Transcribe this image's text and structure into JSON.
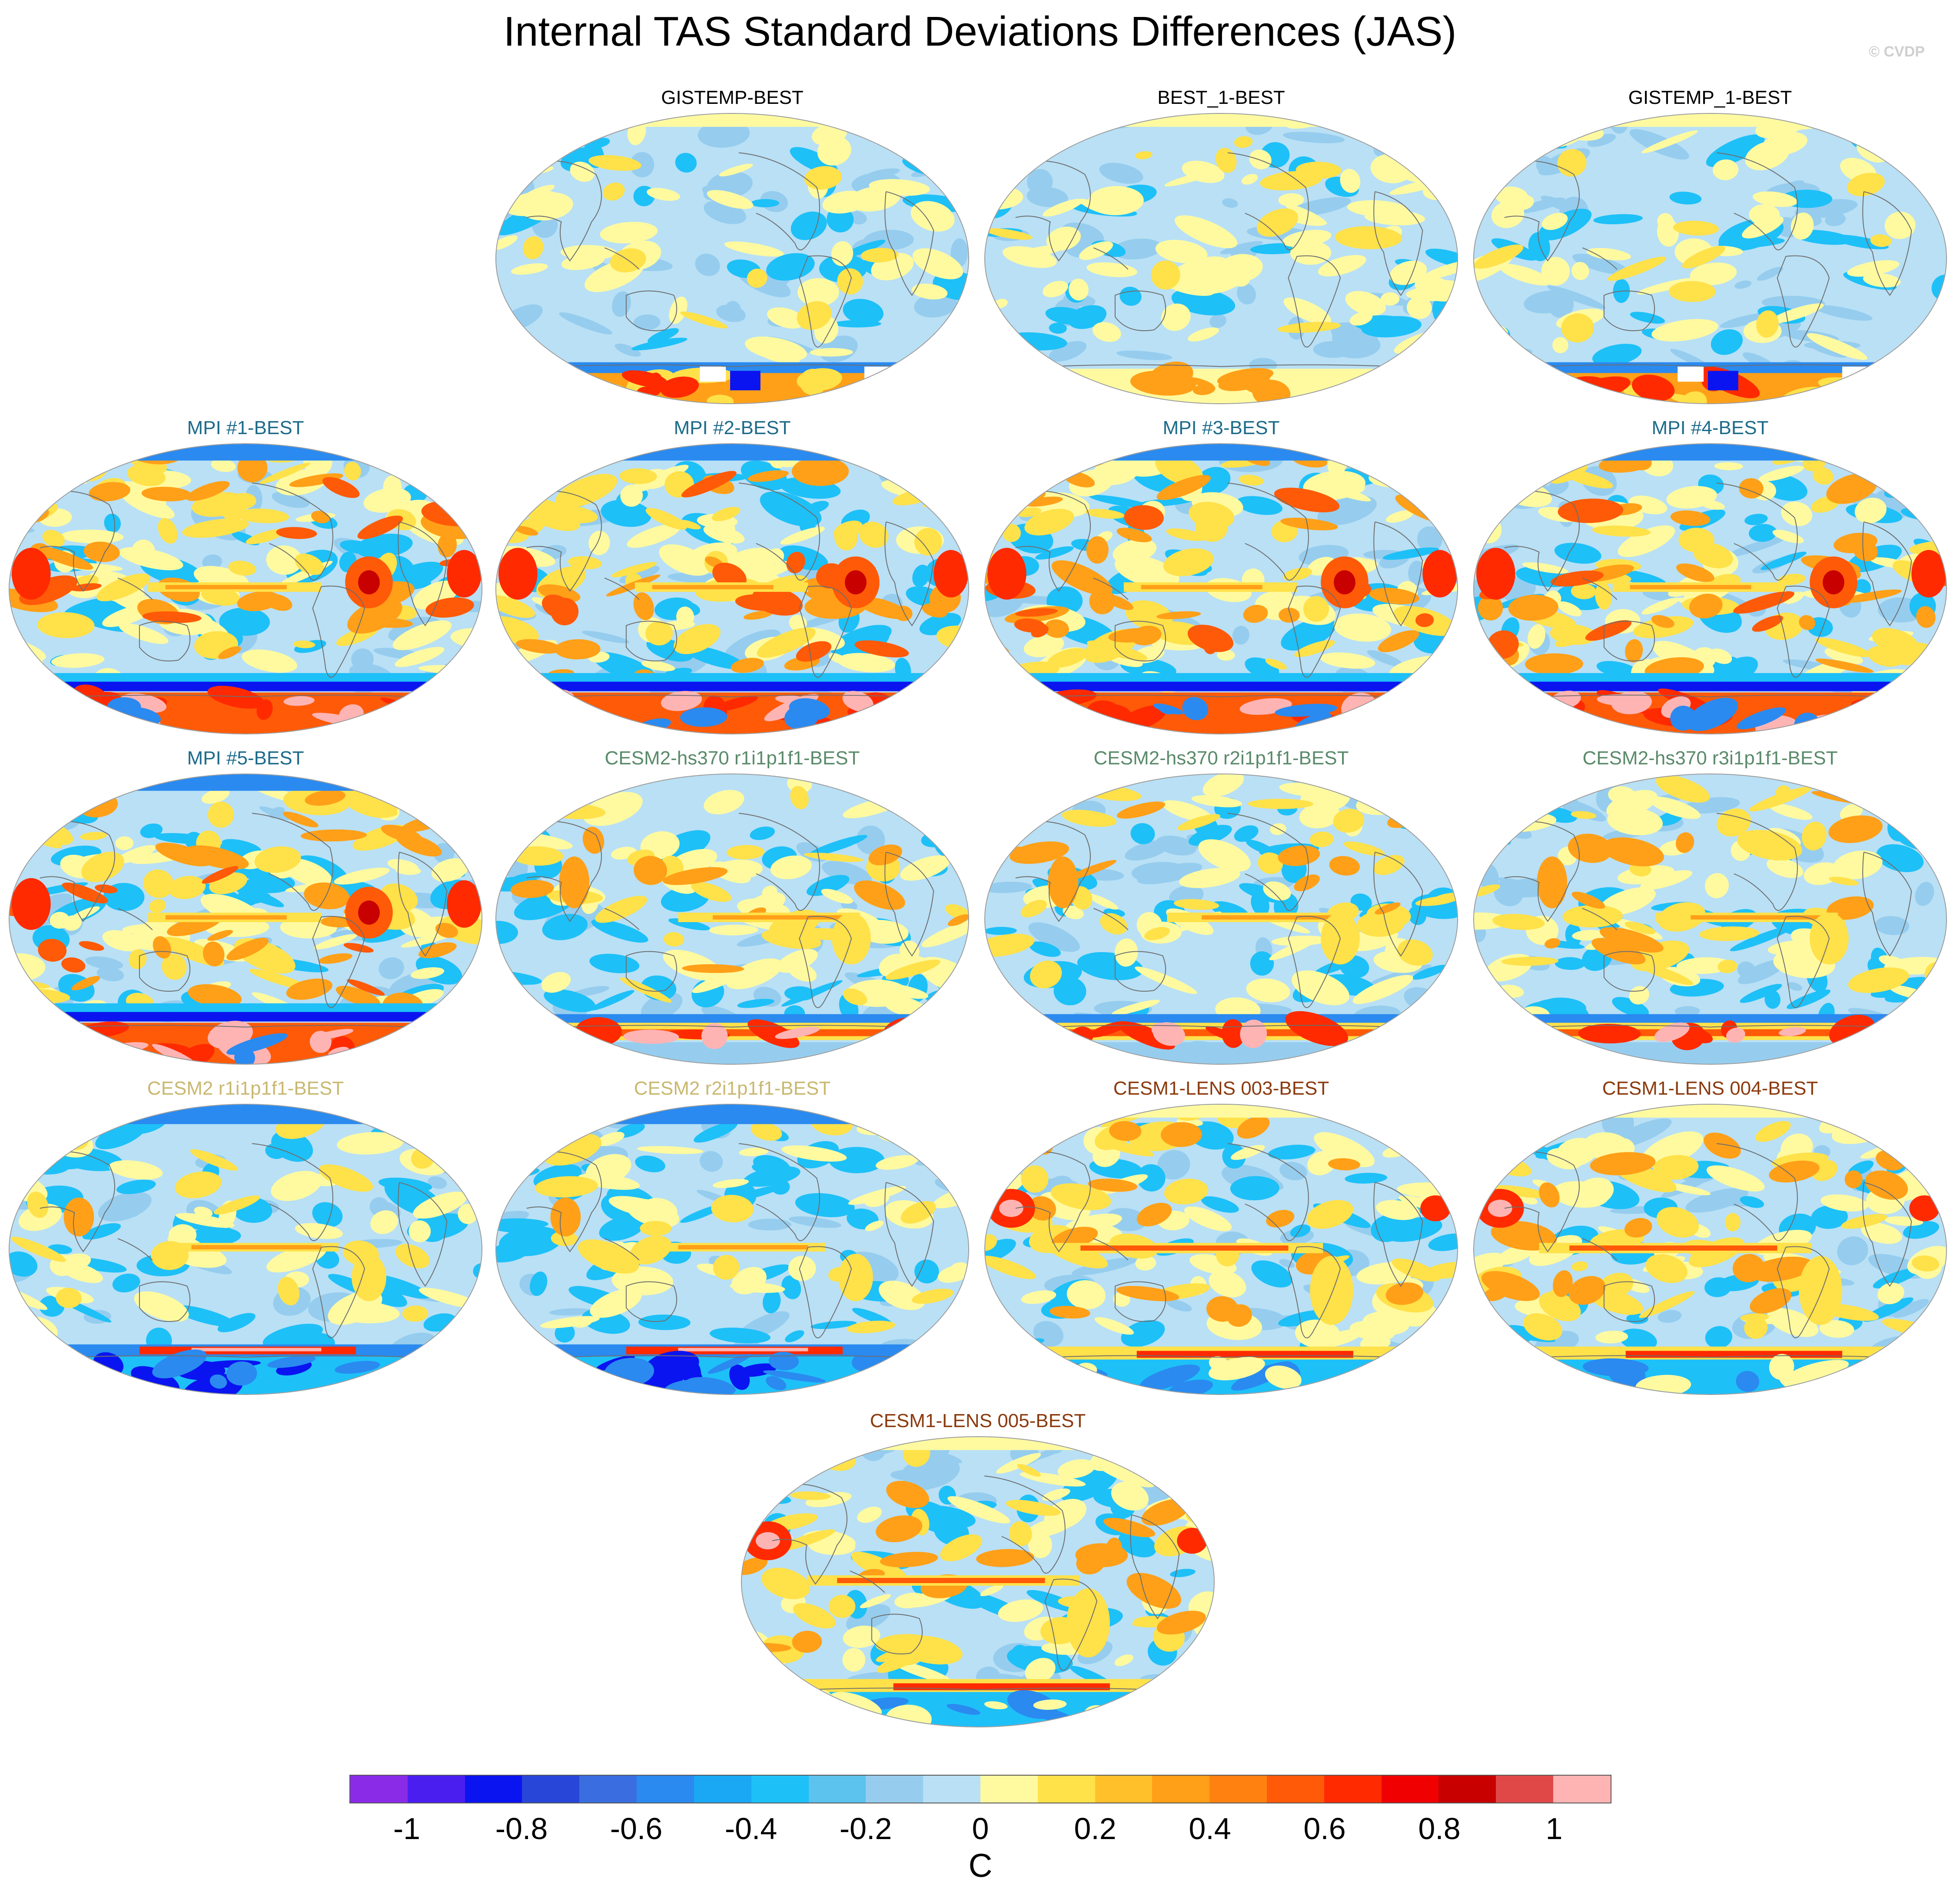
{
  "title": "Internal TAS Standard Deviations Differences (JAS)",
  "copyright": "© CVDP",
  "panels": [
    {
      "label": "GISTEMP-BEST",
      "color": "#000000",
      "pattern": "obs"
    },
    {
      "label": "BEST_1-BEST",
      "color": "#000000",
      "pattern": "obs_yellow"
    },
    {
      "label": "GISTEMP_1-BEST",
      "color": "#000000",
      "pattern": "obs"
    },
    {
      "label": "MPI #1-BEST",
      "color": "#1d6b8a",
      "pattern": "mpi"
    },
    {
      "label": "MPI #2-BEST",
      "color": "#1d6b8a",
      "pattern": "mpi"
    },
    {
      "label": "MPI #3-BEST",
      "color": "#1d6b8a",
      "pattern": "mpi"
    },
    {
      "label": "MPI #4-BEST",
      "color": "#1d6b8a",
      "pattern": "mpi"
    },
    {
      "label": "MPI #5-BEST",
      "color": "#1d6b8a",
      "pattern": "mpi"
    },
    {
      "label": "CESM2-hs370 r1i1p1f1-BEST",
      "color": "#5a8a6a",
      "pattern": "cesm2hs"
    },
    {
      "label": "CESM2-hs370 r2i1p1f1-BEST",
      "color": "#5a8a6a",
      "pattern": "cesm2hs"
    },
    {
      "label": "CESM2-hs370 r3i1p1f1-BEST",
      "color": "#5a8a6a",
      "pattern": "cesm2hs"
    },
    {
      "label": "CESM2 r1i1p1f1-BEST",
      "color": "#c9b870",
      "pattern": "cesm2"
    },
    {
      "label": "CESM2 r2i1p1f1-BEST",
      "color": "#c9b870",
      "pattern": "cesm2"
    },
    {
      "label": "CESM1-LENS 003-BEST",
      "color": "#8b3a0e",
      "pattern": "cesm1"
    },
    {
      "label": "CESM1-LENS 004-BEST",
      "color": "#8b3a0e",
      "pattern": "cesm1"
    },
    {
      "label": "CESM1-LENS 005-BEST",
      "color": "#8b3a0e",
      "pattern": "cesm1"
    }
  ],
  "colorbar": {
    "unit": "C",
    "tick_labels": [
      "-1",
      "-0.8",
      "-0.6",
      "-0.4",
      "-0.2",
      "0",
      "0.2",
      "0.4",
      "0.6",
      "0.8",
      "1"
    ],
    "levels": [
      -1.1,
      -1.0,
      -0.9,
      -0.8,
      -0.7,
      -0.6,
      -0.5,
      -0.4,
      -0.3,
      -0.2,
      -0.1,
      0,
      0.1,
      0.2,
      0.3,
      0.4,
      0.5,
      0.6,
      0.7,
      0.8,
      0.9,
      1.0,
      1.1
    ],
    "colors": [
      "#8a2be8",
      "#4b1ef0",
      "#0a14f0",
      "#2847d8",
      "#3a6ee0",
      "#2a8af0",
      "#1aa8f5",
      "#1ec0f8",
      "#5cc2ee",
      "#96cdee",
      "#b9e0f5",
      "#fffaa0",
      "#ffe14a",
      "#ffc02a",
      "#ffa018",
      "#ff8210",
      "#ff5a08",
      "#ff2a00",
      "#f00000",
      "#c80000",
      "#e04848",
      "#ffb4b4"
    ]
  }
}
